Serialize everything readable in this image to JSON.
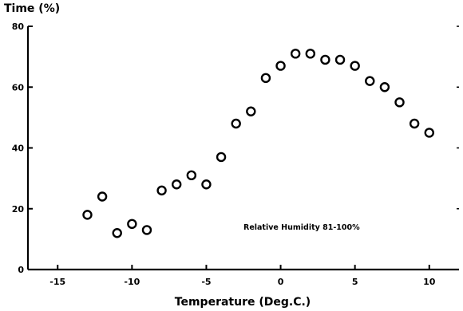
{
  "chart_data": {
    "type": "scatter",
    "title": "",
    "xlabel": "Temperature (Deg.C.)",
    "ylabel": "Time (%)",
    "xlim": [
      -17,
      12
    ],
    "ylim": [
      0,
      80
    ],
    "xticks": [
      -15,
      -10,
      -5,
      0,
      5,
      10
    ],
    "yticks": [
      0,
      20,
      40,
      60,
      80
    ],
    "xtick_labels": [
      "-15",
      "-10",
      "-5",
      "0",
      "5",
      "10"
    ],
    "ytick_labels": [
      "0",
      "20",
      "40",
      "60",
      "80"
    ],
    "grid": false,
    "legend": "none",
    "marker": "open-circle",
    "color": "#000000",
    "annotation": "Relative Humidity 81-100%",
    "series": [
      {
        "x": [
          -13,
          -12,
          -11,
          -10,
          -9,
          -8,
          -7,
          -6,
          -5,
          -4,
          -3,
          -2,
          -1,
          0,
          1,
          2,
          3,
          4,
          5,
          6,
          7,
          8,
          9,
          10
        ],
        "y": [
          18,
          24,
          12,
          15,
          13,
          26,
          28,
          31,
          28,
          37,
          48,
          52,
          63,
          67,
          71,
          71,
          69,
          69,
          67,
          62,
          60,
          55,
          48,
          45
        ]
      }
    ]
  }
}
